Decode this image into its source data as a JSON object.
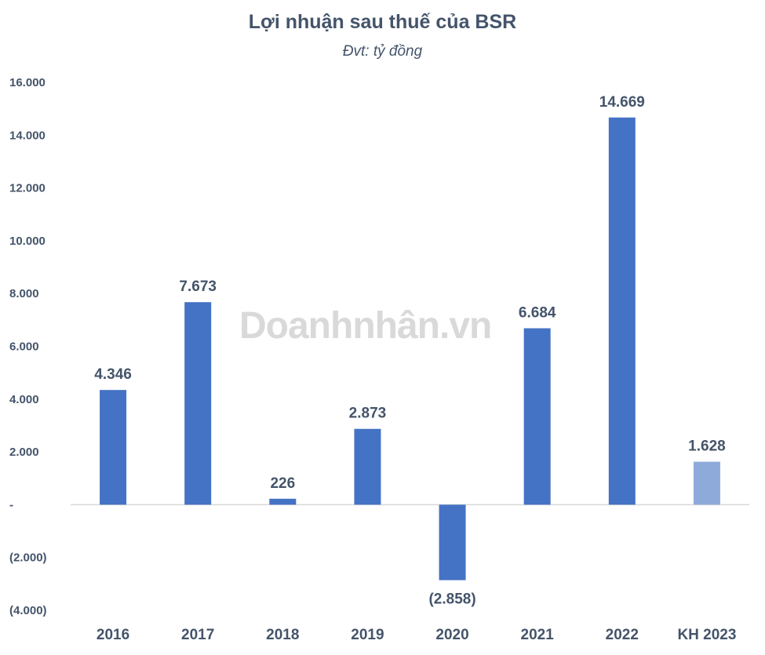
{
  "chart_data": {
    "type": "bar",
    "title": "Lợi nhuận sau thuế của BSR",
    "subtitle": "Đvt: tỷ đồng",
    "categories": [
      "2016",
      "2017",
      "2018",
      "2019",
      "2020",
      "2021",
      "2022",
      "KH 2023"
    ],
    "values": [
      4346,
      7673,
      226,
      2873,
      -2858,
      6684,
      14669,
      1628
    ],
    "data_labels": [
      "4.346",
      "7.673",
      "226",
      "2.873",
      "(2.858)",
      "6.684",
      "14.669",
      "1.628"
    ],
    "ylim": [
      -4000,
      16000
    ],
    "y_ticks": [
      16000,
      14000,
      12000,
      10000,
      8000,
      6000,
      4000,
      2000,
      0,
      -2000,
      -4000
    ],
    "y_tick_labels": [
      "16.000",
      "14.000",
      "12.000",
      "10.000",
      "8.000",
      "6.000",
      "4.000",
      "2.000",
      "-",
      "(2.000)",
      "(4.000)"
    ],
    "grid": false,
    "legend": "none",
    "colors": {
      "bar": "#4472c4",
      "bar_plan": "#8eaadb",
      "text": "#44546a",
      "axis": "#d9d9d9"
    }
  },
  "watermark": "Doanhnhân.vn"
}
